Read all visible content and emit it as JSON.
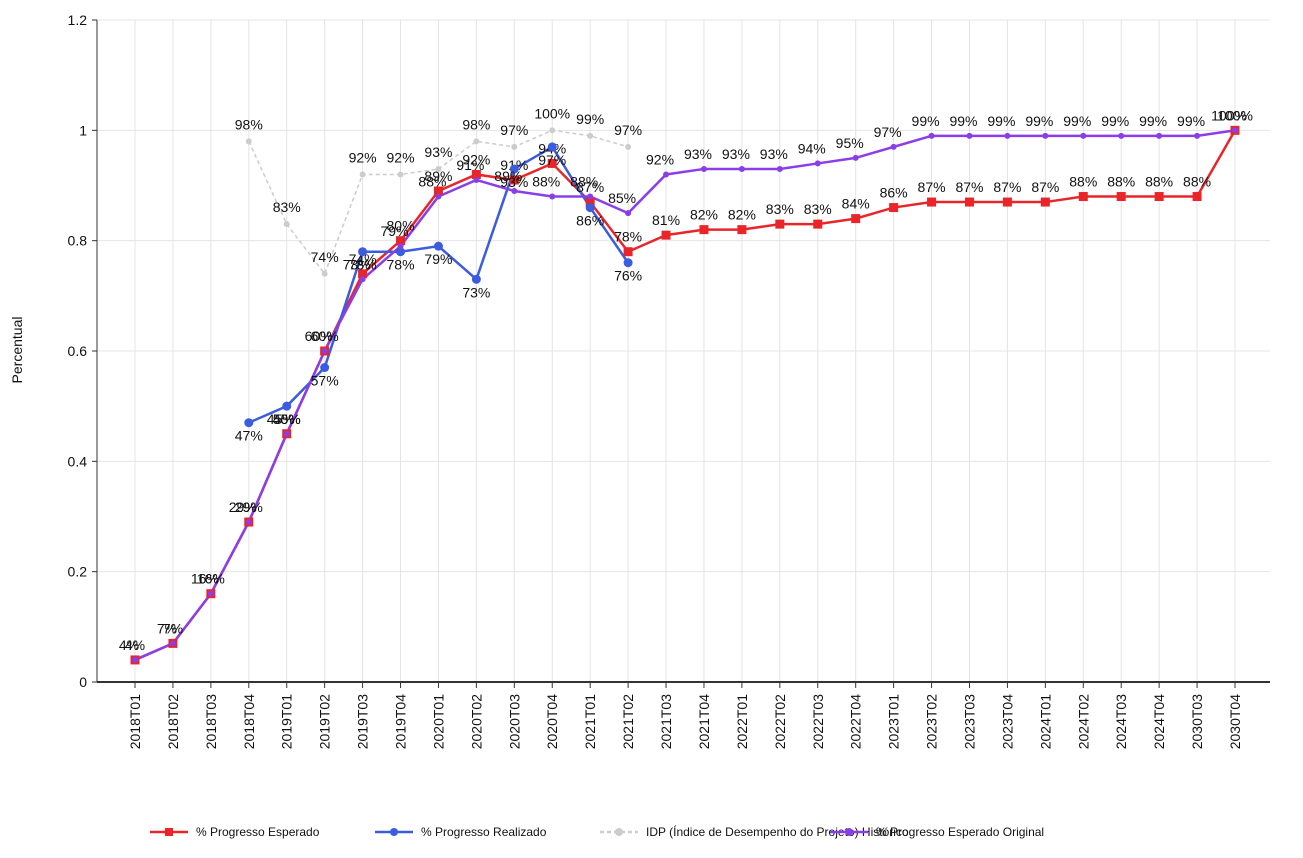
{
  "chart_data": {
    "type": "line",
    "y_label": "Percentual",
    "categories": [
      "2018T01",
      "2018T02",
      "2018T03",
      "2018T04",
      "2019T01",
      "2019T02",
      "2019T03",
      "2019T04",
      "2020T01",
      "2020T02",
      "2020T03",
      "2020T04",
      "2021T01",
      "2021T02",
      "2021T03",
      "2021T04",
      "2022T01",
      "2022T02",
      "2022T03",
      "2022T04",
      "2023T01",
      "2023T02",
      "2023T03",
      "2023T04",
      "2024T01",
      "2024T02",
      "2024T03",
      "2024T04",
      "2030T03",
      "2030T04"
    ],
    "ylim": [
      0,
      1.2
    ],
    "yticks": [
      0,
      0.2,
      0.4,
      0.6,
      0.8,
      1,
      1.2
    ],
    "grid": true,
    "legend": "bottom",
    "series": [
      {
        "name": "% Progresso Esperado",
        "color": "#e8262a",
        "marker": "square",
        "values": [
          0.04,
          0.07,
          0.16,
          0.29,
          0.45,
          0.6,
          0.74,
          0.8,
          0.89,
          0.92,
          0.91,
          0.94,
          0.87,
          0.78,
          0.81,
          0.82,
          0.82,
          0.83,
          0.83,
          0.84,
          0.86,
          0.87,
          0.87,
          0.87,
          0.87,
          0.88,
          0.88,
          0.88,
          0.88,
          1.0
        ],
        "value_labels": [
          "4%",
          "7%",
          "16%",
          "29%",
          "45%",
          "60%",
          "74%",
          "80%",
          "89%",
          "92%",
          "91%",
          "94%",
          "87%",
          "78%",
          "81%",
          "82%",
          "82%",
          "83%",
          "83%",
          "84%",
          "86%",
          "87%",
          "87%",
          "87%",
          "87%",
          "88%",
          "88%",
          "88%",
          "88%",
          "100%"
        ]
      },
      {
        "name": "% Progresso Realizado",
        "color": "#3c5ce0",
        "marker": "circle",
        "values": [
          null,
          null,
          null,
          0.47,
          0.5,
          0.57,
          0.78,
          0.78,
          0.79,
          0.73,
          0.93,
          0.97,
          0.86,
          0.76,
          null,
          null,
          null,
          null,
          null,
          null,
          null,
          null,
          null,
          null,
          null,
          null,
          null,
          null,
          null,
          null
        ],
        "value_labels": [
          null,
          null,
          null,
          "47%",
          "50%",
          "57%",
          "78%",
          "78%",
          "79%",
          "73%",
          "93%",
          "97%",
          "86%",
          "76%",
          null,
          null,
          null,
          null,
          null,
          null,
          null,
          null,
          null,
          null,
          null,
          null,
          null,
          null,
          null,
          null
        ]
      },
      {
        "name": "IDP (Índice de Desempenho do Projeto) Histórico",
        "color": "#cccccc",
        "marker": "dot",
        "values": [
          null,
          null,
          null,
          0.98,
          0.83,
          0.74,
          0.92,
          0.92,
          0.93,
          0.98,
          0.97,
          1.0,
          0.99,
          0.97,
          null,
          null,
          null,
          null,
          null,
          null,
          null,
          null,
          null,
          null,
          null,
          null,
          null,
          null,
          null,
          null
        ],
        "value_labels": [
          null,
          null,
          null,
          "98%",
          "83%",
          "74%",
          "92%",
          "92%",
          "93%",
          "98%",
          "97%",
          "100%",
          "99%",
          "97%",
          null,
          null,
          null,
          null,
          null,
          null,
          null,
          null,
          null,
          null,
          null,
          null,
          null,
          null,
          null,
          null
        ]
      },
      {
        "name": "% Progresso Esperado Original",
        "color": "#8a3ee8",
        "marker": "dot",
        "values": [
          0.04,
          0.07,
          0.16,
          0.29,
          0.45,
          0.6,
          0.73,
          0.79,
          0.88,
          0.91,
          0.89,
          0.88,
          0.88,
          0.85,
          0.92,
          0.93,
          0.93,
          0.93,
          0.94,
          0.95,
          0.97,
          0.99,
          0.99,
          0.99,
          0.99,
          0.99,
          0.99,
          0.99,
          0.99,
          1.0
        ],
        "value_labels": [
          "4%",
          "7%",
          "16%",
          "29%",
          "45%",
          "60%",
          "73%",
          "79%",
          "88%",
          "91%",
          "89%",
          "88%",
          "88%",
          "85%",
          "92%",
          "93%",
          "93%",
          "93%",
          "94%",
          "95%",
          "97%",
          "99%",
          "99%",
          "99%",
          "99%",
          "99%",
          "99%",
          "99%",
          "99%",
          "100%"
        ]
      }
    ]
  }
}
